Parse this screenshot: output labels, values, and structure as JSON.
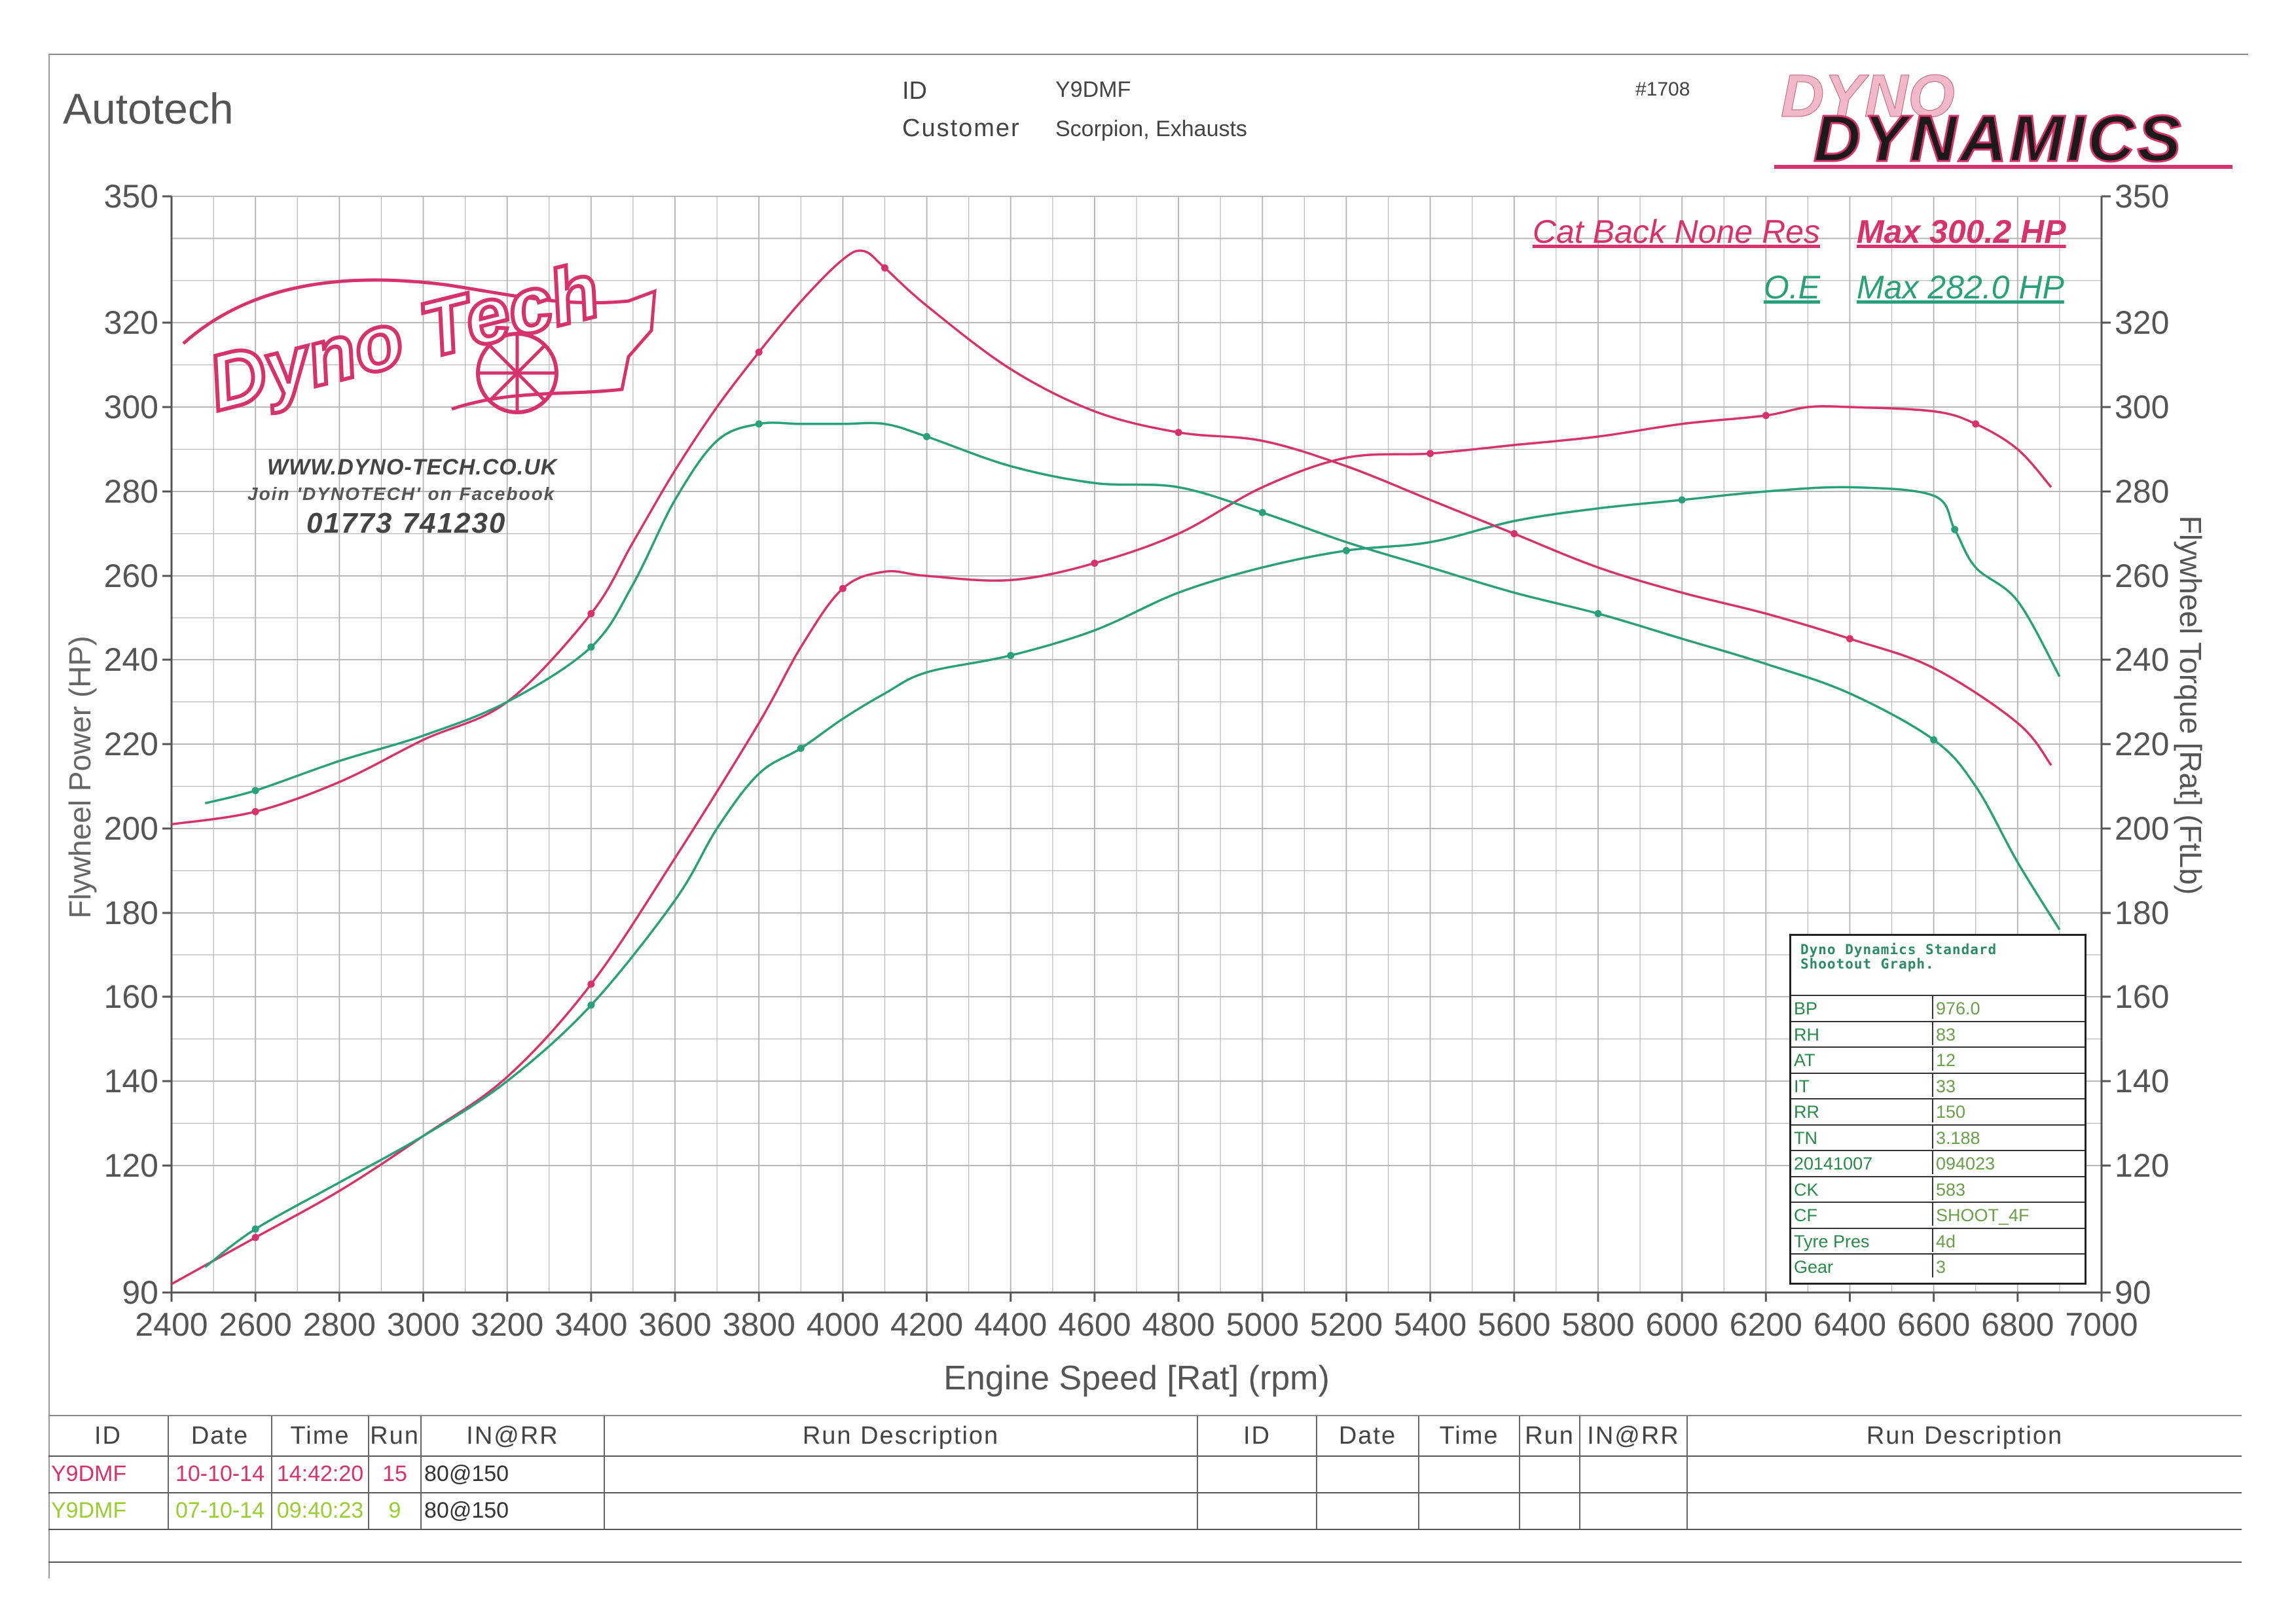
{
  "header": {
    "company": "Autotech",
    "id_label": "ID",
    "id_value": "Y9DMF",
    "customer_label": "Customer",
    "customer_value": "Scorpion, Exhausts",
    "graph_number": "#1708",
    "brand_logo_text": "DYNO DYNAMICS"
  },
  "watermark": {
    "logo_text": "Dyno Tech",
    "website": "WWW.DYNO-TECH.CO.UK",
    "facebook": "Join 'DYNOTECH' on Facebook",
    "phone": "01773 741230"
  },
  "legend": [
    {
      "label": "Cat Back None Res",
      "max": "Max 300.2 HP",
      "color": "#d6336c"
    },
    {
      "label": "O.E",
      "max": "Max 282.0 HP",
      "color": "#2aa07a"
    }
  ],
  "colors": {
    "run1": "#d6336c",
    "run2": "#2aa07a",
    "grid": "#b8b8b8"
  },
  "chart_data": {
    "type": "line",
    "xlabel": "Engine Speed [Rat] (rpm)",
    "ylabel": "Flywheel Power (HP)",
    "y2label": "Flywheel Torque [Rat] (FtLb)",
    "xlim": [
      2400,
      7000
    ],
    "ylim": [
      90,
      350
    ],
    "y2lim": [
      90,
      350
    ],
    "xticks": [
      2400,
      2600,
      2800,
      3000,
      3200,
      3400,
      3600,
      3800,
      4000,
      4200,
      4400,
      4600,
      4800,
      5000,
      5200,
      5400,
      5600,
      5800,
      6000,
      6200,
      6400,
      6600,
      6800,
      7000
    ],
    "yticks": [
      90,
      120,
      140,
      160,
      180,
      200,
      220,
      240,
      260,
      280,
      300,
      320,
      350
    ],
    "y2ticks": [
      90,
      120,
      140,
      160,
      180,
      200,
      220,
      240,
      260,
      280,
      300,
      320,
      350
    ],
    "grid": true,
    "series": [
      {
        "name": "Cat Back None Res",
        "kind": "power",
        "axis": "left",
        "color": "#d6336c",
        "x": [
          2400,
          2600,
          2800,
          3000,
          3200,
          3400,
          3600,
          3800,
          3900,
          4000,
          4100,
          4200,
          4400,
          4600,
          4800,
          5000,
          5200,
          5400,
          5600,
          5800,
          6000,
          6200,
          6300,
          6400,
          6600,
          6700,
          6800,
          6880
        ],
        "y": [
          92,
          103,
          114,
          127,
          141,
          163,
          193,
          225,
          243,
          257,
          261,
          260,
          259,
          263,
          270,
          281,
          288,
          289,
          291,
          293,
          296,
          298,
          300,
          300,
          299,
          296,
          290,
          281
        ]
      },
      {
        "name": "O.E",
        "kind": "power",
        "axis": "left",
        "color": "#2aa07a",
        "x": [
          2480,
          2600,
          2800,
          3000,
          3200,
          3400,
          3600,
          3700,
          3800,
          3900,
          4000,
          4100,
          4200,
          4400,
          4600,
          4800,
          5000,
          5200,
          5400,
          5600,
          5800,
          6000,
          6200,
          6400,
          6600,
          6650,
          6700,
          6800,
          6900
        ],
        "y": [
          96,
          105,
          116,
          127,
          140,
          158,
          183,
          200,
          213,
          219,
          226,
          232,
          237,
          241,
          247,
          256,
          262,
          266,
          268,
          273,
          276,
          278,
          280,
          281,
          279,
          271,
          262,
          254,
          236
        ]
      },
      {
        "name": "Cat Back None Res",
        "kind": "torque",
        "axis": "right",
        "color": "#d6336c",
        "x": [
          2400,
          2600,
          2800,
          3000,
          3200,
          3400,
          3500,
          3600,
          3700,
          3800,
          3900,
          4000,
          4050,
          4100,
          4200,
          4400,
          4600,
          4800,
          5000,
          5200,
          5400,
          5600,
          5800,
          6000,
          6200,
          6400,
          6600,
          6800,
          6880
        ],
        "y": [
          201,
          204,
          211,
          221,
          230,
          251,
          268,
          285,
          300,
          313,
          325,
          335,
          337,
          333,
          324,
          309,
          299,
          294,
          292,
          286,
          278,
          270,
          262,
          256,
          251,
          245,
          238,
          225,
          215
        ]
      },
      {
        "name": "O.E",
        "kind": "torque",
        "axis": "right",
        "color": "#2aa07a",
        "x": [
          2480,
          2600,
          2800,
          3000,
          3200,
          3400,
          3500,
          3600,
          3700,
          3800,
          3900,
          4000,
          4100,
          4200,
          4400,
          4600,
          4800,
          5000,
          5200,
          5400,
          5600,
          5800,
          6000,
          6200,
          6400,
          6600,
          6700,
          6800,
          6900
        ],
        "y": [
          206,
          209,
          216,
          222,
          230,
          243,
          258,
          278,
          292,
          296,
          296,
          296,
          296,
          293,
          286,
          282,
          281,
          275,
          268,
          262,
          256,
          251,
          245,
          239,
          232,
          221,
          210,
          192,
          176
        ]
      }
    ]
  },
  "shootout": {
    "title": "Dyno Dynamics Standard Shootout Graph.",
    "rows": [
      {
        "k": "BP",
        "v": "976.0"
      },
      {
        "k": "RH",
        "v": "83"
      },
      {
        "k": "AT",
        "v": "12"
      },
      {
        "k": "IT",
        "v": "33"
      },
      {
        "k": "RR",
        "v": "150"
      },
      {
        "k": "TN",
        "v": "3.188"
      },
      {
        "k": "20141007",
        "v": "094023"
      },
      {
        "k": "CK",
        "v": "583"
      },
      {
        "k": "CF",
        "v": "SHOOT_4F"
      },
      {
        "k": "Tyre Pres",
        "v": "4d"
      },
      {
        "k": "Gear",
        "v": "3"
      }
    ]
  },
  "run_table": {
    "headers_left": [
      "ID",
      "Date",
      "Time",
      "Run",
      "IN@RR",
      "Run Description"
    ],
    "headers_right": [
      "ID",
      "Date",
      "Time",
      "Run",
      "IN@RR",
      "Run Description"
    ],
    "rows": [
      {
        "id": "Y9DMF",
        "date": "10-10-14",
        "time": "14:42:20",
        "run": "15",
        "inrr": "80@150",
        "desc": "",
        "color": "#d6336c"
      },
      {
        "id": "Y9DMF",
        "date": "07-10-14",
        "time": "09:40:23",
        "run": "9",
        "inrr": "80@150",
        "desc": "",
        "color": "#9acd32"
      }
    ]
  }
}
